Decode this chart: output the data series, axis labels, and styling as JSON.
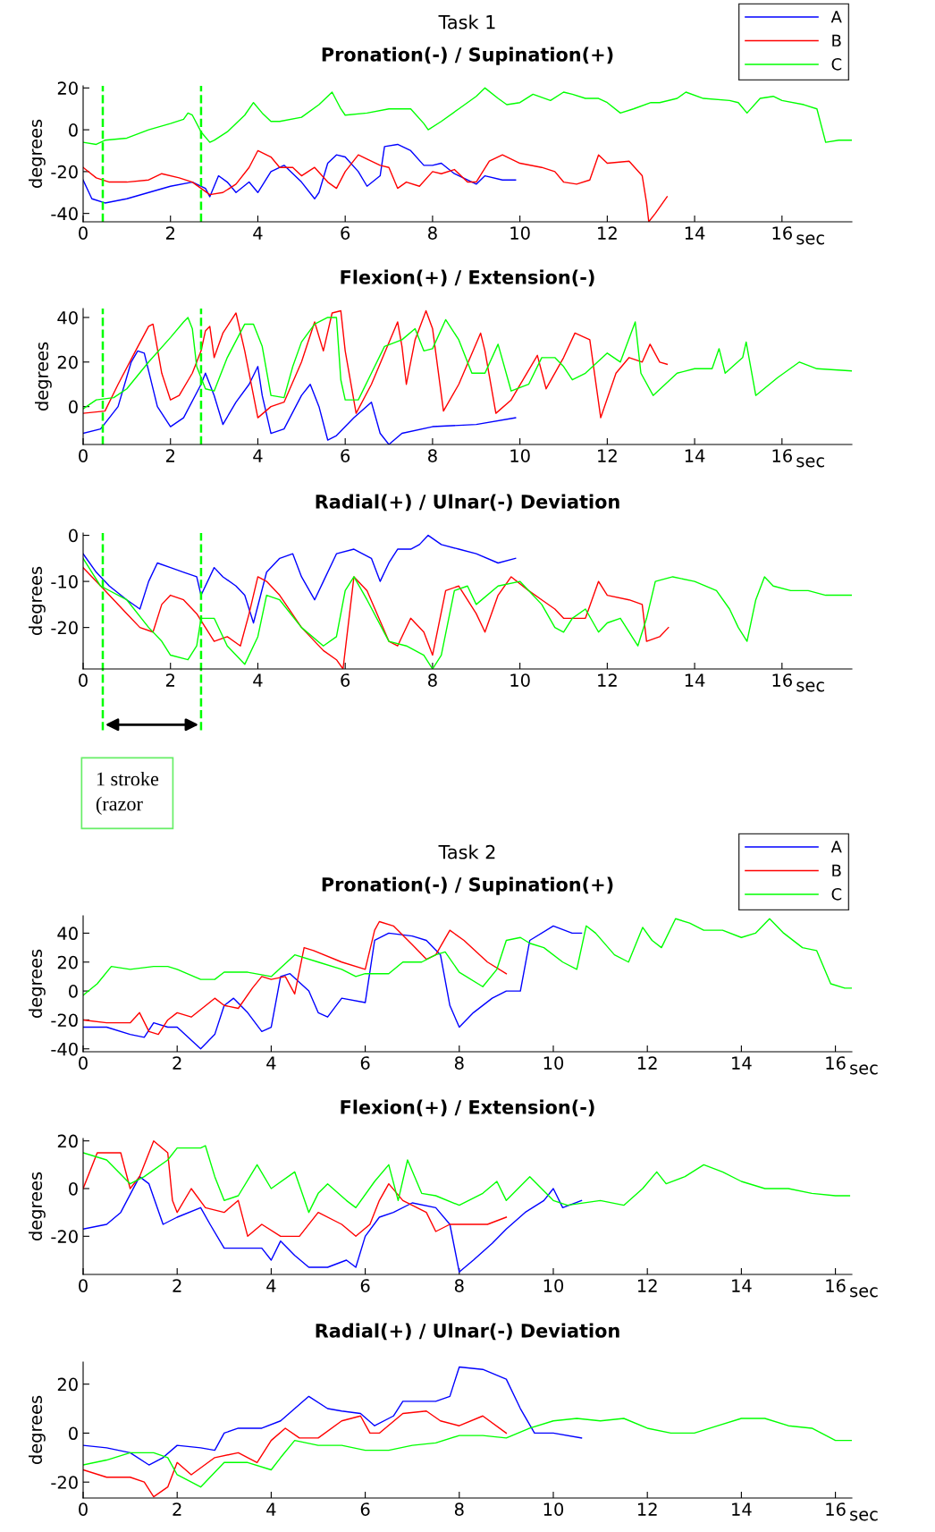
{
  "chart_data": [
    {
      "type": "line",
      "title": "Task 1",
      "subtitle": "Pronation(-) / Supination(+)",
      "ylabel": "degrees",
      "xlabel": "sec",
      "xlim": [
        0,
        17.6
      ],
      "xticks": [
        0,
        2,
        4,
        6,
        8,
        10,
        12,
        14,
        16
      ],
      "ylim": [
        -44,
        21
      ],
      "yticks": [
        -40,
        -20,
        0,
        20
      ],
      "legend": "top right",
      "ref_lines": [
        {
          "axis": "x",
          "value": 0.45,
          "color": "#00ff00",
          "line_style": "dashed"
        },
        {
          "axis": "x",
          "value": 2.7,
          "color": "#00ff00",
          "line_style": "dashed"
        }
      ],
      "series": [
        {
          "name": "A",
          "color": "#0000ff",
          "x": [
            0,
            0.2,
            0.5,
            1,
            1.5,
            2,
            2.5,
            2.8,
            2.9,
            3.1,
            3.3,
            3.5,
            3.8,
            4,
            4.3,
            4.6,
            5,
            5.3,
            5.4,
            5.6,
            5.8,
            6,
            6.3,
            6.5,
            6.8,
            6.9,
            7.2,
            7.5,
            7.8,
            8,
            8.2,
            8.5,
            9,
            9.2,
            9.6,
            9.9
          ],
          "values": [
            -24,
            -33,
            -35,
            -33,
            -30,
            -27,
            -25,
            -28,
            -32,
            -22,
            -25,
            -30,
            -25,
            -30,
            -20,
            -17,
            -25,
            -33,
            -30,
            -16,
            -12,
            -13,
            -20,
            -27,
            -22,
            -8,
            -7,
            -10,
            -17,
            -17,
            -16,
            -21,
            -26,
            -22,
            -24,
            -24
          ]
        },
        {
          "name": "B",
          "color": "#ff0000",
          "x": [
            0,
            0.3,
            0.6,
            1,
            1.5,
            1.8,
            2.2,
            2.5,
            2.7,
            2.9,
            3.2,
            3.5,
            3.8,
            4,
            4.3,
            4.5,
            4.8,
            5,
            5.3,
            5.6,
            5.8,
            6,
            6.3,
            6.5,
            6.8,
            7,
            7.2,
            7.4,
            7.7,
            8,
            8.2,
            8.5,
            8.8,
            9,
            9.3,
            9.6,
            10,
            10.5,
            10.8,
            11,
            11.3,
            11.6,
            11.8,
            12,
            12.5,
            12.8,
            12.9,
            12.95,
            13.1,
            13.37
          ],
          "values": [
            -18,
            -23,
            -25,
            -25,
            -24,
            -21,
            -23,
            -25,
            -28,
            -31,
            -30,
            -26,
            -18,
            -10,
            -13,
            -18,
            -18,
            -22,
            -18,
            -25,
            -28,
            -20,
            -12,
            -14,
            -17,
            -18,
            -28,
            -25,
            -27,
            -20,
            -21,
            -19,
            -25,
            -25,
            -15,
            -12,
            -16,
            -18,
            -20,
            -25,
            -26,
            -24,
            -12,
            -16,
            -15,
            -22,
            -35,
            -44,
            -40,
            -32
          ]
        },
        {
          "name": "C",
          "color": "#00ff00",
          "x": [
            0,
            0.3,
            0.5,
            1,
            1.5,
            2,
            2.3,
            2.4,
            2.5,
            2.7,
            2.9,
            3,
            3.3,
            3.7,
            3.9,
            4.1,
            4.3,
            4.5,
            5,
            5.4,
            5.7,
            5.9,
            6,
            6.5,
            7,
            7.5,
            7.8,
            7.9,
            8.2,
            8.6,
            9,
            9.2,
            9.5,
            9.7,
            10,
            10.3,
            10.7,
            11,
            11.2,
            11.5,
            11.8,
            12,
            12.3,
            12.6,
            13,
            13.2,
            13.6,
            13.8,
            14.2,
            14.8,
            15,
            15.2,
            15.5,
            15.8,
            16,
            16.5,
            16.8,
            17,
            17.3,
            17.6
          ],
          "values": [
            -6,
            -7,
            -5,
            -4,
            0,
            3,
            5,
            8,
            7,
            -1,
            -6,
            -5,
            -1,
            7,
            13,
            8,
            4,
            4,
            6,
            12,
            18,
            10,
            7,
            8,
            10,
            10,
            3,
            0,
            4,
            10,
            16,
            20,
            15,
            12,
            13,
            17,
            14,
            18,
            17,
            15,
            15,
            13,
            8,
            10,
            13,
            13,
            15,
            18,
            15,
            14,
            13,
            8,
            15,
            16,
            14,
            12,
            10,
            -6,
            -5,
            -5
          ]
        }
      ]
    },
    {
      "type": "line",
      "title": "Flexion(+) / Extension(-)",
      "ylabel": "degrees",
      "xlabel": "sec",
      "xlim": [
        0,
        17.6
      ],
      "xticks": [
        0,
        2,
        4,
        6,
        8,
        10,
        12,
        14,
        16
      ],
      "ylim": [
        -17,
        44
      ],
      "yticks": [
        0,
        20,
        40
      ],
      "ref_lines": [
        {
          "axis": "x",
          "value": 0.45,
          "color": "#00ff00",
          "line_style": "dashed"
        },
        {
          "axis": "x",
          "value": 2.7,
          "color": "#00ff00",
          "line_style": "dashed"
        }
      ],
      "series": [
        {
          "color": "#0000ff",
          "x": [
            0,
            0.4,
            0.8,
            1.1,
            1.25,
            1.4,
            1.7,
            2,
            2.3,
            2.7,
            2.8,
            3,
            3.2,
            3.5,
            3.8,
            4,
            4.1,
            4.3,
            4.6,
            5,
            5.2,
            5.4,
            5.6,
            5.8,
            6.2,
            6.6,
            6.8,
            7,
            7.3,
            8,
            9,
            9.9
          ],
          "values": [
            -12,
            -10,
            0,
            20,
            25,
            24,
            0,
            -9,
            -5,
            10,
            15,
            5,
            -8,
            2,
            10,
            18,
            5,
            -12,
            -10,
            5,
            10,
            0,
            -15,
            -13,
            -5,
            2,
            -12,
            -17,
            -12,
            -9,
            -8,
            -5
          ]
        },
        {
          "color": "#ff0000",
          "x": [
            0,
            0.5,
            0.8,
            1.2,
            1.5,
            1.6,
            1.8,
            2,
            2.2,
            2.5,
            2.7,
            2.8,
            2.9,
            3,
            3.2,
            3.5,
            3.7,
            4,
            4.3,
            4.6,
            5,
            5.3,
            5.5,
            5.7,
            5.9,
            6,
            6.25,
            6.6,
            7.2,
            7.3,
            7.4,
            7.6,
            7.85,
            8,
            8.25,
            8.6,
            9.1,
            9.2,
            9.45,
            9.8,
            10.4,
            10.6,
            11,
            11.26,
            11.6,
            11.85,
            12.2,
            12.5,
            12.8,
            12.98,
            13.2,
            13.37
          ],
          "values": [
            -3,
            -2,
            10,
            25,
            36,
            37,
            15,
            3,
            5,
            15,
            25,
            34,
            36,
            22,
            33,
            42,
            25,
            -5,
            0,
            2,
            20,
            38,
            25,
            42,
            43,
            25,
            -3,
            10,
            38,
            27,
            10,
            30,
            43,
            35,
            -2,
            10,
            33,
            25,
            -3,
            3,
            23,
            8,
            22,
            33,
            30,
            -5,
            15,
            22,
            20,
            28,
            20,
            19
          ]
        },
        {
          "color": "#00ff00",
          "x": [
            0,
            0.3,
            0.7,
            1,
            1.5,
            2,
            2.3,
            2.4,
            2.5,
            2.6,
            2.8,
            3,
            3.3,
            3.7,
            3.9,
            4.1,
            4.3,
            4.6,
            4.8,
            5,
            5.3,
            5.6,
            5.8,
            5.9,
            6,
            6.3,
            6.6,
            6.9,
            7.3,
            7.6,
            7.8,
            8,
            8.3,
            8.6,
            8.9,
            9.2,
            9.5,
            9.8,
            10.2,
            10.5,
            10.8,
            11,
            11.2,
            11.5,
            12,
            12.3,
            12.64,
            12.77,
            13.05,
            13.6,
            14,
            14.4,
            14.56,
            14.7,
            15.1,
            15.18,
            15.4,
            15.9,
            16.4,
            16.8,
            17.6
          ],
          "values": [
            -1,
            3,
            4,
            8,
            20,
            31,
            38,
            40,
            35,
            18,
            8,
            7,
            22,
            37,
            37,
            27,
            5,
            4,
            18,
            29,
            37,
            40,
            40,
            12,
            3,
            3,
            15,
            27,
            30,
            35,
            25,
            26,
            39,
            30,
            15,
            15,
            28,
            7,
            10,
            22,
            22,
            18,
            12,
            15,
            24,
            20,
            38,
            15,
            5,
            15,
            17,
            17,
            26,
            15,
            22,
            29,
            5,
            13,
            20,
            17,
            16
          ]
        }
      ]
    },
    {
      "type": "line",
      "title": "Radial(+) / Ulnar(-) Deviation",
      "ylabel": "degrees",
      "xlabel": "sec",
      "xlim": [
        0,
        17.6
      ],
      "xticks": [
        0,
        2,
        4,
        6,
        8,
        10,
        12,
        14,
        16
      ],
      "ylim": [
        -29,
        0.5
      ],
      "yticks": [
        -20,
        -10,
        0
      ],
      "ref_lines": [
        {
          "axis": "x",
          "value": 0.45,
          "color": "#00ff00",
          "line_style": "dashed"
        },
        {
          "axis": "x",
          "value": 2.7,
          "color": "#00ff00",
          "line_style": "dashed"
        }
      ],
      "annotations": [
        "1 stroke\n(razor"
      ],
      "series": [
        {
          "color": "#0000ff",
          "x": [
            0,
            0.3,
            0.6,
            1,
            1.3,
            1.5,
            1.7,
            2,
            2.3,
            2.6,
            2.7,
            3,
            3.2,
            3.5,
            3.7,
            3.9,
            4.2,
            4.5,
            4.8,
            5,
            5.3,
            5.5,
            5.8,
            6.2,
            6.6,
            6.8,
            7,
            7.2,
            7.5,
            7.7,
            7.9,
            8.2,
            8.6,
            9,
            9.5,
            9.9
          ],
          "values": [
            -4,
            -8,
            -11,
            -14,
            -16,
            -10,
            -6,
            -7,
            -8,
            -9,
            -13,
            -7,
            -9,
            -11,
            -13,
            -19,
            -8,
            -5,
            -4,
            -9,
            -14,
            -10,
            -4,
            -3,
            -5,
            -10,
            -6,
            -3,
            -3,
            -2,
            0,
            -2,
            -3,
            -4,
            -6,
            -5
          ]
        },
        {
          "color": "#ff0000",
          "x": [
            0,
            0.3,
            0.6,
            1,
            1.3,
            1.6,
            1.8,
            2,
            2.3,
            2.6,
            2.8,
            3,
            3.3,
            3.6,
            3.8,
            4,
            4.2,
            4.5,
            5,
            5.5,
            5.8,
            5.95,
            6.2,
            6.5,
            7,
            7.2,
            7.5,
            7.8,
            8,
            8.3,
            8.6,
            9,
            9.2,
            9.5,
            9.8,
            10.2,
            10.5,
            10.8,
            11,
            11.5,
            11.8,
            12,
            12.5,
            12.8,
            12.9,
            13.2,
            13.4
          ],
          "values": [
            -7,
            -10,
            -13,
            -17,
            -20,
            -21,
            -15,
            -13,
            -14,
            -17,
            -20,
            -23,
            -22,
            -24,
            -17,
            -9,
            -10,
            -13,
            -20,
            -25,
            -27,
            -29,
            -9,
            -12,
            -23,
            -24,
            -18,
            -21,
            -26,
            -12,
            -11,
            -17,
            -21,
            -13,
            -9,
            -12,
            -14,
            -16,
            -18,
            -18,
            -10,
            -13,
            -14,
            -15,
            -23,
            -22,
            -20
          ]
        },
        {
          "color": "#00ff00",
          "x": [
            0,
            0.4,
            1,
            1.5,
            1.8,
            2,
            2.4,
            2.6,
            2.7,
            3,
            3.3,
            3.7,
            4,
            4.2,
            4.5,
            5,
            5.5,
            5.8,
            6,
            6.2,
            6.5,
            7,
            7.4,
            7.8,
            8,
            8.2,
            8.5,
            8.8,
            9,
            9.5,
            10,
            10.5,
            10.8,
            11,
            11.2,
            11.5,
            11.8,
            12,
            12.3,
            12.7,
            12.9,
            13.1,
            13.5,
            14,
            14.5,
            14.8,
            15,
            15.2,
            15.4,
            15.6,
            15.8,
            16.2,
            16.6,
            17,
            17.6
          ],
          "values": [
            -5,
            -11,
            -14,
            -20,
            -23,
            -26,
            -27,
            -24,
            -18,
            -18,
            -24,
            -28,
            -22,
            -13,
            -14,
            -20,
            -24,
            -22,
            -12,
            -9,
            -14,
            -23,
            -24,
            -26,
            -29,
            -26,
            -12,
            -11,
            -15,
            -11,
            -10,
            -15,
            -20,
            -21,
            -18,
            -16,
            -21,
            -19,
            -18,
            -24,
            -18,
            -10,
            -9,
            -10,
            -12,
            -16,
            -20,
            -23,
            -14,
            -9,
            -11,
            -12,
            -12,
            -13,
            -13
          ]
        }
      ]
    },
    {
      "type": "line",
      "title": "Task 2",
      "subtitle": "Pronation(-) / Supination(+)",
      "ylabel": "degrees",
      "xlabel": "sec",
      "xlim": [
        0,
        16.35
      ],
      "xticks": [
        0,
        2,
        4,
        6,
        8,
        10,
        12,
        14,
        16
      ],
      "ylim": [
        -42,
        52
      ],
      "yticks": [
        -40,
        -20,
        0,
        20,
        40
      ],
      "legend": "top right",
      "series": [
        {
          "name": "A",
          "color": "#0000ff",
          "x": [
            0,
            0.5,
            1,
            1.3,
            1.5,
            1.8,
            2,
            2.5,
            2.8,
            3,
            3.2,
            3.5,
            3.8,
            4,
            4.2,
            4.4,
            4.8,
            5,
            5.2,
            5.5,
            6,
            6.2,
            6.5,
            7,
            7.3,
            7.6,
            7.8,
            8,
            8.3,
            8.7,
            9,
            9.3,
            9.5,
            10,
            10.4,
            10.6
          ],
          "values": [
            -25,
            -25,
            -30,
            -32,
            -22,
            -25,
            -25,
            -40,
            -30,
            -10,
            -5,
            -15,
            -28,
            -25,
            10,
            12,
            0,
            -15,
            -18,
            -5,
            -8,
            35,
            40,
            38,
            35,
            25,
            -10,
            -25,
            -15,
            -5,
            0,
            0,
            35,
            45,
            40,
            40
          ]
        },
        {
          "name": "B",
          "color": "#ff0000",
          "x": [
            0,
            0.5,
            1,
            1.2,
            1.4,
            1.6,
            1.8,
            2,
            2.3,
            2.8,
            3,
            3.3,
            3.6,
            3.8,
            4,
            4.3,
            4.5,
            4.7,
            4.9,
            5.5,
            6,
            6.2,
            6.3,
            6.6,
            7,
            7.3,
            7.5,
            7.8,
            8.1,
            8.6,
            9
          ],
          "values": [
            -20,
            -22,
            -22,
            -15,
            -28,
            -30,
            -20,
            -15,
            -18,
            -5,
            -10,
            -12,
            2,
            10,
            8,
            10,
            -2,
            30,
            28,
            20,
            15,
            42,
            48,
            45,
            32,
            22,
            25,
            42,
            35,
            20,
            12
          ]
        },
        {
          "name": "C",
          "color": "#00ff00",
          "x": [
            0,
            0.3,
            0.6,
            1,
            1.5,
            1.8,
            2,
            2.5,
            2.8,
            3,
            3.5,
            4,
            4.5,
            5,
            5.5,
            5.8,
            6,
            6.5,
            6.8,
            7.2,
            7.5,
            7.7,
            8,
            8.5,
            8.8,
            9,
            9.3,
            9.5,
            9.8,
            10.2,
            10.5,
            10.7,
            10.9,
            11.3,
            11.6,
            11.9,
            12.1,
            12.3,
            12.6,
            12.9,
            13.2,
            13.6,
            14,
            14.3,
            14.6,
            14.9,
            15.3,
            15.6,
            15.9,
            16.2,
            16.35
          ],
          "values": [
            -3,
            5,
            17,
            15,
            17,
            17,
            15,
            8,
            8,
            13,
            13,
            10,
            25,
            20,
            15,
            10,
            12,
            12,
            20,
            20,
            25,
            27,
            13,
            3,
            15,
            35,
            37,
            33,
            30,
            20,
            15,
            45,
            40,
            25,
            20,
            44,
            35,
            30,
            50,
            47,
            42,
            42,
            37,
            40,
            50,
            40,
            30,
            28,
            5,
            2,
            2
          ]
        }
      ]
    },
    {
      "type": "line",
      "title": "Flexion(+) / Extension(-)",
      "ylabel": "degrees",
      "xlabel": "sec",
      "xlim": [
        0,
        16.35
      ],
      "xticks": [
        0,
        2,
        4,
        6,
        8,
        10,
        12,
        14,
        16
      ],
      "ylim": [
        -36,
        21
      ],
      "yticks": [
        -20,
        0,
        20
      ],
      "series": [
        {
          "color": "#0000ff",
          "x": [
            0,
            0.5,
            0.8,
            1.2,
            1.4,
            1.7,
            2,
            2.5,
            2.7,
            3,
            3.3,
            3.8,
            4,
            4.2,
            4.5,
            4.8,
            5.2,
            5.6,
            5.8,
            6,
            6.3,
            6.6,
            7,
            7.5,
            7.8,
            8,
            8.3,
            8.7,
            9,
            9.4,
            9.8,
            10,
            10.2,
            10.6
          ],
          "values": [
            -17,
            -15,
            -10,
            5,
            2,
            -15,
            -12,
            -8,
            -15,
            -25,
            -25,
            -25,
            -30,
            -22,
            -28,
            -33,
            -33,
            -30,
            -33,
            -20,
            -12,
            -10,
            -6,
            -8,
            -15,
            -35,
            -30,
            -23,
            -17,
            -10,
            -5,
            0,
            -8,
            -5
          ]
        },
        {
          "color": "#ff0000",
          "x": [
            0,
            0.3,
            0.8,
            1,
            1.2,
            1.5,
            1.8,
            1.9,
            2,
            2.3,
            2.6,
            3,
            3.3,
            3.5,
            3.8,
            4.2,
            4.6,
            5,
            5.5,
            5.8,
            6.1,
            6.3,
            6.5,
            6.8,
            7.3,
            7.5,
            7.8,
            8.2,
            8.6,
            9
          ],
          "values": [
            0,
            15,
            15,
            0,
            5,
            20,
            15,
            -5,
            -10,
            0,
            -8,
            -10,
            -5,
            -20,
            -15,
            -20,
            -20,
            -10,
            -15,
            -20,
            -15,
            -5,
            2,
            -5,
            -10,
            -18,
            -15,
            -15,
            -15,
            -12
          ]
        },
        {
          "color": "#00ff00",
          "x": [
            0,
            0.5,
            1,
            1.3,
            1.8,
            2,
            2.5,
            2.6,
            2.8,
            3,
            3.3,
            3.7,
            4,
            4.5,
            4.8,
            5,
            5.2,
            5.6,
            5.8,
            6.2,
            6.5,
            6.7,
            6.9,
            7.2,
            7.5,
            8,
            8.5,
            8.8,
            9,
            9.5,
            10,
            10.3,
            11,
            11.5,
            11.9,
            12.2,
            12.4,
            12.8,
            13.2,
            13.6,
            14,
            14.5,
            15,
            15.5,
            16,
            16.3
          ],
          "values": [
            15,
            12,
            2,
            5,
            12,
            17,
            17,
            18,
            5,
            -5,
            -3,
            10,
            0,
            7,
            -10,
            -2,
            2,
            -5,
            -8,
            3,
            10,
            -5,
            12,
            -2,
            -3,
            -7,
            -2,
            3,
            -5,
            5,
            -5,
            -7,
            -5,
            -7,
            0,
            7,
            2,
            5,
            10,
            7,
            3,
            0,
            0,
            -2,
            -3,
            -3
          ]
        }
      ]
    },
    {
      "type": "line",
      "title": "Radial(+) / Ulnar(-) Deviation",
      "ylabel": "degrees",
      "xlabel": "sec",
      "xlim": [
        0,
        16.35
      ],
      "xticks": [
        0,
        2,
        4,
        6,
        8,
        10,
        12,
        14,
        16
      ],
      "ylim": [
        -26.5,
        29
      ],
      "yticks": [
        -20,
        0,
        20
      ],
      "series": [
        {
          "color": "#0000ff",
          "x": [
            0,
            0.5,
            1,
            1.4,
            1.7,
            2,
            2.5,
            2.8,
            3,
            3.3,
            3.8,
            4.2,
            4.5,
            4.8,
            5.2,
            5.5,
            5.9,
            6.2,
            6.6,
            6.8,
            7.5,
            7.8,
            8,
            8.5,
            9,
            9.3,
            9.6,
            10,
            10.6
          ],
          "values": [
            -5,
            -6,
            -8,
            -13,
            -10,
            -5,
            -6,
            -7,
            0,
            2,
            2,
            5,
            10,
            15,
            10,
            9,
            8,
            3,
            7,
            13,
            13,
            15,
            27,
            26,
            22,
            10,
            0,
            0,
            -2
          ]
        },
        {
          "color": "#ff0000",
          "x": [
            0,
            0.5,
            1,
            1.3,
            1.5,
            1.8,
            2,
            2.3,
            2.8,
            3.3,
            3.7,
            4,
            4.3,
            4.6,
            5,
            5.5,
            5.9,
            6.1,
            6.3,
            6.8,
            7.3,
            7.6,
            8,
            8.5,
            9
          ],
          "values": [
            -15,
            -18,
            -18,
            -20,
            -26,
            -22,
            -12,
            -17,
            -10,
            -8,
            -12,
            -3,
            2,
            -2,
            -2,
            5,
            7,
            0,
            0,
            8,
            9,
            5,
            3,
            7,
            0
          ]
        },
        {
          "color": "#00ff00",
          "x": [
            0,
            0.5,
            1,
            1.5,
            1.8,
            2,
            2.5,
            3,
            3.5,
            4,
            4.2,
            4.5,
            5,
            5.5,
            6,
            6.5,
            7,
            7.5,
            8,
            8.5,
            9,
            9.5,
            10,
            10.5,
            11,
            11.5,
            12,
            12.5,
            13,
            13.5,
            14,
            14.5,
            15,
            15.5,
            16,
            16.35
          ],
          "values": [
            -13,
            -11,
            -8,
            -8,
            -10,
            -17,
            -22,
            -12,
            -12,
            -15,
            -10,
            -3,
            -5,
            -5,
            -7,
            -7,
            -5,
            -4,
            -1,
            -1,
            -2,
            2,
            5,
            6,
            5,
            6,
            2,
            0,
            0,
            3,
            6,
            6,
            3,
            2,
            -3,
            -3
          ]
        }
      ]
    }
  ]
}
